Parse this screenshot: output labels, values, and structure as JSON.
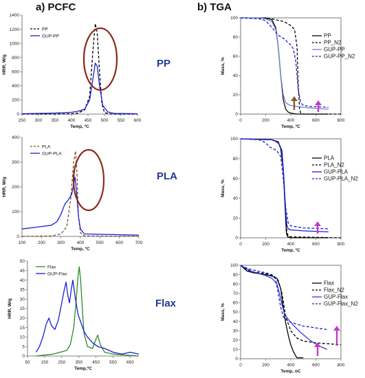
{
  "headers": {
    "left": "a) PCFC",
    "right": "b) TGA"
  },
  "row_labels": [
    "PP",
    "PLA",
    "Flax"
  ],
  "colors": {
    "black": "#000000",
    "blue": "#1a1ad6",
    "brown": "#7a5230",
    "green": "#2a8a2a",
    "ellipse": "#8b2a1a",
    "arrow_pink": "#c03cc8",
    "arrow_brown": "#8b5a2b",
    "label_blue": "#1f3a93"
  },
  "chart_data": [
    {
      "id": "pcfc-pp",
      "type": "line",
      "xlabel": "Temp, ºC",
      "ylabel": "HRR, W/g",
      "xlim": [
        250,
        600
      ],
      "ylim": [
        0,
        1400
      ],
      "xticks": [
        250,
        300,
        350,
        400,
        450,
        500,
        550,
        600
      ],
      "yticks": [
        0,
        200,
        400,
        600,
        800,
        1000,
        1200,
        1400
      ],
      "legend": "top-left",
      "series": [
        {
          "name": "PP",
          "style": "dash",
          "color": "#000000",
          "x": [
            250,
            350,
            400,
            420,
            440,
            455,
            465,
            472,
            478,
            485,
            492,
            500,
            520,
            600
          ],
          "y": [
            0,
            0,
            5,
            15,
            60,
            250,
            900,
            1280,
            1150,
            600,
            150,
            20,
            0,
            0
          ]
        },
        {
          "name": "GUP-PP",
          "style": "solid",
          "color": "#1a1ad6",
          "x": [
            250,
            300,
            350,
            380,
            400,
            420,
            440,
            455,
            465,
            472,
            478,
            485,
            495,
            510,
            530,
            600
          ],
          "y": [
            5,
            10,
            15,
            20,
            25,
            40,
            70,
            200,
            500,
            720,
            680,
            400,
            120,
            30,
            10,
            5
          ]
        }
      ]
    },
    {
      "id": "pcfc-pla",
      "type": "line",
      "xlabel": "Temp, ºC",
      "ylabel": "HRR, W/g",
      "xlim": [
        100,
        700
      ],
      "ylim": [
        0,
        400
      ],
      "xticks": [
        100,
        200,
        300,
        400,
        500,
        600,
        700
      ],
      "yticks": [
        0,
        100,
        200,
        300,
        400
      ],
      "legend": "top-left",
      "series": [
        {
          "name": "PLA",
          "style": "dash",
          "color": "#7a5230",
          "x": [
            100,
            250,
            300,
            330,
            350,
            365,
            375,
            382,
            390,
            400,
            420,
            700
          ],
          "y": [
            0,
            2,
            10,
            40,
            150,
            300,
            345,
            260,
            80,
            15,
            2,
            0
          ]
        },
        {
          "name": "GUP-PLA",
          "style": "solid",
          "color": "#1a1ad6",
          "x": [
            100,
            150,
            200,
            250,
            280,
            300,
            320,
            340,
            355,
            365,
            372,
            380,
            390,
            400,
            420,
            700
          ],
          "y": [
            30,
            35,
            40,
            45,
            60,
            90,
            130,
            150,
            170,
            210,
            240,
            180,
            80,
            30,
            10,
            5
          ]
        }
      ]
    },
    {
      "id": "pcfc-flax",
      "type": "line",
      "xlabel": "Temp,ºC",
      "ylabel": "HRR, W/g",
      "xlim": [
        50,
        700
      ],
      "ylim": [
        0,
        50
      ],
      "xticks": [
        50,
        150,
        250,
        350,
        450,
        550,
        650
      ],
      "yticks": [
        0,
        5,
        10,
        15,
        20,
        25,
        30,
        35,
        40,
        45,
        50
      ],
      "legend": "top-left",
      "series": [
        {
          "name": "Flax",
          "style": "solid",
          "color": "#2a8a2a",
          "x": [
            100,
            200,
            280,
            300,
            320,
            335,
            345,
            352,
            360,
            370,
            380,
            400,
            430,
            450,
            460,
            475,
            500,
            550,
            700
          ],
          "y": [
            0,
            1,
            3,
            6,
            15,
            30,
            42,
            47,
            40,
            25,
            12,
            5,
            4,
            9,
            11,
            6,
            2,
            1,
            0
          ]
        },
        {
          "name": "GUP-Flax",
          "style": "solid",
          "color": "#1a1ad6",
          "x": [
            100,
            120,
            140,
            160,
            175,
            190,
            210,
            230,
            250,
            265,
            275,
            285,
            295,
            305,
            315,
            330,
            345,
            360,
            380,
            400,
            430,
            460,
            500,
            550,
            600,
            650,
            700
          ],
          "y": [
            2,
            5,
            10,
            17,
            20,
            16,
            14,
            19,
            28,
            35,
            39,
            32,
            28,
            35,
            40,
            30,
            22,
            18,
            13,
            10,
            7,
            5,
            4,
            2,
            1,
            2,
            1
          ]
        }
      ]
    },
    {
      "id": "tga-pp",
      "type": "line",
      "xlabel": "Temp, ºC",
      "ylabel": "Mass, %",
      "xlim": [
        0,
        800
      ],
      "ylim": [
        0,
        100
      ],
      "xticks": [
        0,
        200,
        400,
        600,
        800
      ],
      "yticks": [
        0,
        20,
        40,
        60,
        80,
        100
      ],
      "legend": "right",
      "series": [
        {
          "name": "PP",
          "style": "solid",
          "color": "#000000",
          "x": [
            0,
            200,
            250,
            280,
            300,
            320,
            340,
            360,
            380,
            400,
            450,
            700
          ],
          "y": [
            100,
            100,
            98,
            90,
            70,
            40,
            15,
            5,
            2,
            1,
            0,
            0
          ]
        },
        {
          "name": "PP_N2",
          "style": "dash",
          "color": "#000000",
          "x": [
            0,
            250,
            350,
            400,
            430,
            450,
            460,
            470,
            480,
            500,
            800
          ],
          "y": [
            100,
            99,
            96,
            92,
            88,
            70,
            30,
            5,
            1,
            0,
            0
          ]
        },
        {
          "name": "GUP-PP",
          "style": "solid",
          "color": "#6f86c9",
          "x": [
            0,
            150,
            200,
            250,
            280,
            300,
            320,
            340,
            360,
            380,
            400,
            450,
            500,
            600,
            700
          ],
          "y": [
            100,
            100,
            99,
            96,
            88,
            70,
            40,
            20,
            12,
            10,
            9,
            8,
            7,
            6,
            5
          ]
        },
        {
          "name": "GUP-PP_N2",
          "style": "dash",
          "color": "#1a1ad6",
          "x": [
            0,
            150,
            200,
            250,
            300,
            350,
            380,
            400,
            420,
            440,
            460,
            480,
            500,
            550,
            700
          ],
          "y": [
            100,
            99,
            97,
            90,
            82,
            78,
            74,
            72,
            68,
            55,
            25,
            12,
            9,
            8,
            7
          ]
        }
      ]
    },
    {
      "id": "tga-pla",
      "type": "line",
      "xlabel": "Temp, ºC",
      "ylabel": "Mass, %",
      "xlim": [
        0,
        800
      ],
      "ylim": [
        0,
        100
      ],
      "xticks": [
        0,
        200,
        400,
        600,
        800
      ],
      "yticks": [
        0,
        20,
        40,
        60,
        80,
        100
      ],
      "legend": "right",
      "series": [
        {
          "name": "PLA",
          "style": "solid",
          "color": "#000000",
          "x": [
            0,
            250,
            300,
            320,
            340,
            355,
            365,
            375,
            400,
            700
          ],
          "y": [
            100,
            99,
            97,
            90,
            70,
            30,
            5,
            1,
            0,
            0
          ]
        },
        {
          "name": "PLA_N2",
          "style": "dash",
          "color": "#000000",
          "x": [
            0,
            250,
            300,
            330,
            345,
            360,
            370,
            380,
            400,
            800
          ],
          "y": [
            100,
            99,
            96,
            88,
            60,
            20,
            5,
            2,
            1,
            0
          ]
        },
        {
          "name": "GUP-PLA",
          "style": "solid",
          "color": "#1a1ad6",
          "x": [
            0,
            250,
            290,
            310,
            330,
            345,
            360,
            370,
            380,
            400,
            500,
            700
          ],
          "y": [
            100,
            99,
            97,
            94,
            88,
            60,
            25,
            12,
            9,
            8,
            7,
            6
          ]
        },
        {
          "name": "GUP-PLA_N2",
          "style": "dash",
          "color": "#1a1ad6",
          "x": [
            0,
            150,
            200,
            230,
            260,
            290,
            320,
            340,
            360,
            380,
            400,
            500,
            700
          ],
          "y": [
            100,
            99,
            96,
            92,
            90,
            88,
            82,
            60,
            30,
            15,
            12,
            10,
            9
          ]
        }
      ]
    },
    {
      "id": "tga-flax",
      "type": "line",
      "xlabel": "Temp, oC",
      "ylabel": "Mass, %",
      "xlim": [
        0,
        800
      ],
      "ylim": [
        0,
        100
      ],
      "xticks": [
        0,
        200,
        400,
        600,
        800
      ],
      "yticks": [
        0,
        10,
        20,
        30,
        40,
        50,
        60,
        70,
        80,
        90,
        100
      ],
      "legend": "right",
      "series": [
        {
          "name": "Flax",
          "style": "solid",
          "color": "#000000",
          "x": [
            0,
            50,
            100,
            200,
            260,
            290,
            320,
            340,
            360,
            380,
            400,
            420,
            440,
            450,
            500
          ],
          "y": [
            100,
            94,
            92,
            90,
            88,
            86,
            75,
            55,
            38,
            25,
            15,
            8,
            3,
            1,
            1
          ]
        },
        {
          "name": "Flax_N2",
          "style": "dash",
          "color": "#000000",
          "x": [
            0,
            50,
            100,
            200,
            260,
            300,
            330,
            360,
            400,
            450,
            500,
            600,
            700,
            800
          ],
          "y": [
            100,
            95,
            93,
            91,
            89,
            84,
            70,
            45,
            30,
            22,
            19,
            17,
            16,
            15
          ]
        },
        {
          "name": "GUP-Flax",
          "style": "solid",
          "color": "#3a3ad6",
          "x": [
            0,
            50,
            100,
            200,
            250,
            290,
            310,
            330,
            350,
            380,
            420,
            480,
            550,
            620,
            690
          ],
          "y": [
            100,
            96,
            93,
            89,
            86,
            80,
            70,
            58,
            48,
            42,
            36,
            28,
            20,
            14,
            10
          ]
        },
        {
          "name": "GUP-Flax_N2",
          "style": "dash",
          "color": "#1a1ad6",
          "x": [
            0,
            50,
            100,
            200,
            250,
            280,
            300,
            320,
            340,
            360,
            400,
            450,
            500,
            600,
            700
          ],
          "y": [
            100,
            97,
            95,
            92,
            90,
            85,
            70,
            55,
            45,
            42,
            39,
            37,
            35,
            33,
            31
          ]
        }
      ]
    }
  ]
}
